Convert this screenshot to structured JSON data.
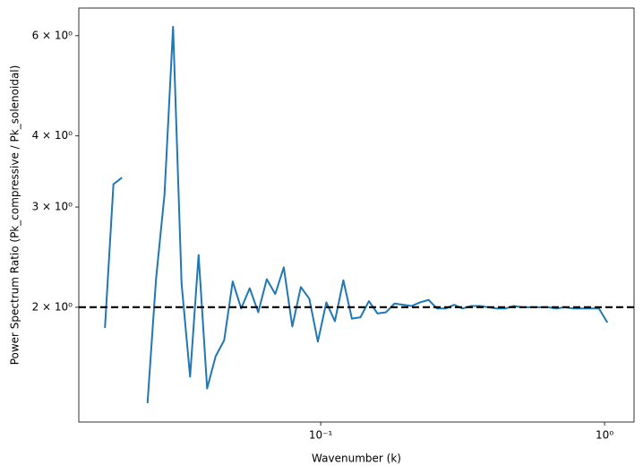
{
  "chart_data": {
    "type": "line",
    "x_label": "Wavenumber (k)",
    "y_label": "Power Spectrum Ratio (Pk_compressive / Pk_solenoidal)",
    "x_scale": "log",
    "y_scale": "log",
    "xlim": [
      0.01406,
      1.27
    ],
    "ylim": [
      1.257,
      6.71
    ],
    "xticks": [
      {
        "value": 0.1,
        "label": "10⁻¹"
      },
      {
        "value": 1,
        "label": "10⁰"
      }
    ],
    "yticks": [
      {
        "value": 2,
        "label": "2 × 10⁰"
      },
      {
        "value": 3,
        "label": "3 × 10⁰"
      },
      {
        "value": 4,
        "label": "4 × 10⁰"
      },
      {
        "value": 6,
        "label": "6 × 10⁰"
      }
    ],
    "x": [
      0.01738,
      0.01862,
      0.01995,
      0.02138,
      0.02291,
      0.02455,
      0.0263,
      0.02818,
      0.0302,
      0.03236,
      0.03467,
      0.03715,
      0.03981,
      0.04266,
      0.04571,
      0.04898,
      0.05248,
      0.05623,
      0.06026,
      0.06457,
      0.06918,
      0.07413,
      0.07943,
      0.08511,
      0.0912,
      0.09772,
      0.1047,
      0.1122,
      0.1202,
      0.1288,
      0.138,
      0.1479,
      0.1585,
      0.1698,
      0.182,
      0.195,
      0.2089,
      0.2239,
      0.2399,
      0.257,
      0.2754,
      0.2951,
      0.3162,
      0.3388,
      0.3631,
      0.389,
      0.4169,
      0.4467,
      0.4786,
      0.5129,
      0.5495,
      0.5888,
      0.631,
      0.6761,
      0.7244,
      0.7762,
      0.8318,
      0.8913,
      0.955,
      1.023
    ],
    "series": [
      {
        "color": "#1f77b4",
        "values": [
          1.84,
          3.29,
          3.38,
          null,
          null,
          1.357,
          2.24,
          3.16,
          6.22,
          2.2,
          1.51,
          2.47,
          1.44,
          1.64,
          1.75,
          2.22,
          1.99,
          2.16,
          1.96,
          2.24,
          2.11,
          2.35,
          1.85,
          2.17,
          2.07,
          1.74,
          2.04,
          1.89,
          2.23,
          1.91,
          1.92,
          2.05,
          1.95,
          1.96,
          2.03,
          2.02,
          2.01,
          2.04,
          2.06,
          1.99,
          1.99,
          2.02,
          1.99,
          2.01,
          2.01,
          2.0,
          1.99,
          1.99,
          2.01,
          2.0,
          2.0,
          2.0,
          2.0,
          1.99,
          2.0,
          1.99,
          1.99,
          1.99,
          1.99,
          1.88
        ]
      }
    ],
    "hline": {
      "value": 2,
      "color": "#000000"
    }
  }
}
